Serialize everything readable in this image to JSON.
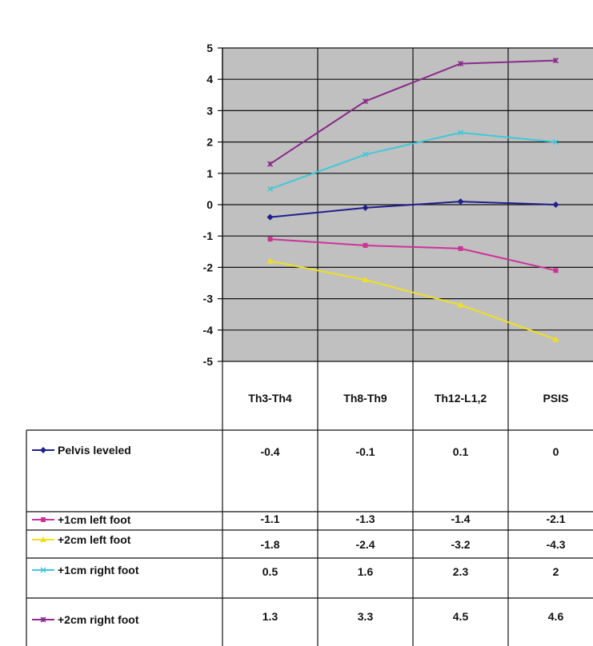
{
  "chart_data": {
    "type": "line",
    "categories": [
      "Th3-Th4",
      "Th8-Th9",
      "Th12-L1,2",
      "PSIS"
    ],
    "ylim": [
      -5,
      5
    ],
    "yticks": [
      5,
      4,
      3,
      2,
      1,
      0,
      -1,
      -2,
      -3,
      -4,
      -5
    ],
    "grid": true,
    "legend_placement": "data-table-left",
    "plot_background": "#c0c0c0",
    "series": [
      {
        "name": "Pelvis leveled",
        "values": [
          -0.4,
          -0.1,
          0.1,
          0
        ],
        "color": "#1f1f8f",
        "marker": "diamond"
      },
      {
        "name": "+1cm left foot",
        "values": [
          -1.1,
          -1.3,
          -1.4,
          -2.1
        ],
        "color": "#cc3399",
        "marker": "square"
      },
      {
        "name": "+2cm left foot",
        "values": [
          -1.8,
          -2.4,
          -3.2,
          -4.3
        ],
        "color": "#f0e020",
        "marker": "triangle"
      },
      {
        "name": "+1cm right foot",
        "values": [
          0.5,
          1.6,
          2.3,
          2
        ],
        "color": "#40c8d8",
        "marker": "x"
      },
      {
        "name": "+2cm right foot",
        "values": [
          1.3,
          3.3,
          4.5,
          4.6
        ],
        "color": "#8a2a8a",
        "marker": "star"
      }
    ]
  }
}
